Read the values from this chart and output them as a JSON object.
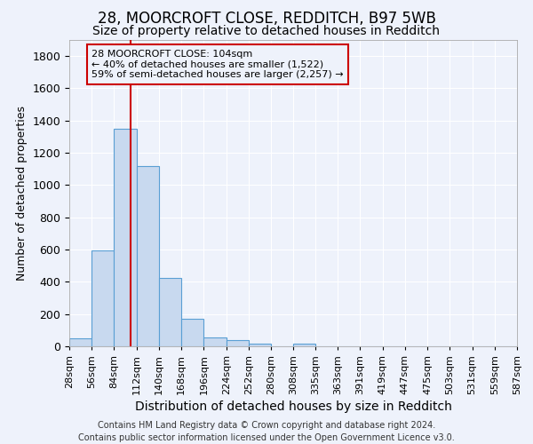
{
  "title1": "28, MOORCROFT CLOSE, REDDITCH, B97 5WB",
  "title2": "Size of property relative to detached houses in Redditch",
  "xlabel": "Distribution of detached houses by size in Redditch",
  "ylabel": "Number of detached properties",
  "footnote": "Contains HM Land Registry data © Crown copyright and database right 2024.\nContains public sector information licensed under the Open Government Licence v3.0.",
  "bin_edges": [
    28,
    56,
    84,
    112,
    140,
    168,
    196,
    224,
    252,
    280,
    308,
    335,
    363,
    391,
    419,
    447,
    475,
    503,
    531,
    559,
    587
  ],
  "bar_values": [
    50,
    597,
    1348,
    1120,
    425,
    170,
    57,
    37,
    15,
    0,
    15,
    0,
    0,
    0,
    0,
    0,
    0,
    0,
    0,
    0
  ],
  "bar_color": "#c8d9ef",
  "bar_edge_color": "#5a9fd4",
  "vline_x": 104,
  "vline_color": "#cc0000",
  "annotation_line1": "28 MOORCROFT CLOSE: 104sqm",
  "annotation_line2": "← 40% of detached houses are smaller (1,522)",
  "annotation_line3": "59% of semi-detached houses are larger (2,257) →",
  "annotation_box_color": "#cc0000",
  "ylim": [
    0,
    1900
  ],
  "yticks": [
    0,
    200,
    400,
    600,
    800,
    1000,
    1200,
    1400,
    1600,
    1800
  ],
  "bg_color": "#eef2fb",
  "grid_color": "#ffffff",
  "title1_fontsize": 12,
  "title2_fontsize": 10,
  "xlabel_fontsize": 10,
  "ylabel_fontsize": 9,
  "footnote_fontsize": 7,
  "tick_fontsize": 8
}
